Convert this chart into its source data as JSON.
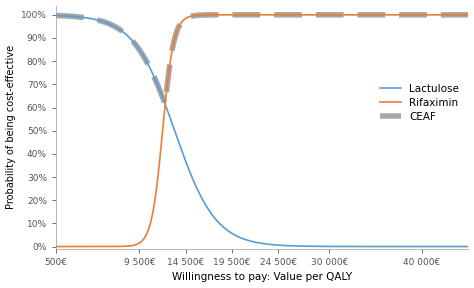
{
  "title": "",
  "xlabel": "Willingness to pay: Value per QALY",
  "ylabel": "Probability of being cost-effective",
  "x_ticks": [
    500,
    9500,
    14500,
    19500,
    24500,
    30000,
    40000
  ],
  "x_tick_labels": [
    "500€",
    "9 500€",
    "14 500€",
    "19 500€",
    "24 500€",
    "30 000€",
    "40 000€"
  ],
  "xlim": [
    500,
    45000
  ],
  "ylim": [
    -0.01,
    1.04
  ],
  "lactulose_color": "#5b9bd5",
  "rifaximin_color": "#ed7d31",
  "ceaf_color": "#9e9e9e",
  "lactulose_label": "Lactulose",
  "rifaximin_label": "Rifaximin",
  "ceaf_label": "CEAF",
  "lactulose_midpoint": 13300,
  "lactulose_scale": 2200,
  "rifaximin_midpoint": 12000,
  "rifaximin_scale": 600,
  "background_color": "#ffffff"
}
